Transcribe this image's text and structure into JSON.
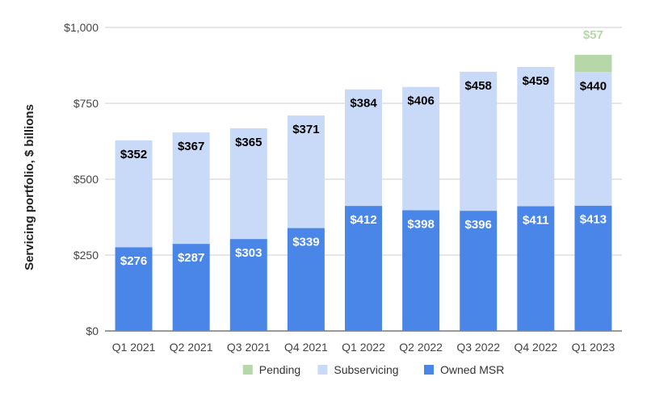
{
  "chart_data": {
    "type": "bar",
    "stacked": true,
    "categories": [
      "Q1 2021",
      "Q2 2021",
      "Q3 2021",
      "Q4 2021",
      "Q1 2022",
      "Q2 2022",
      "Q3 2022",
      "Q4 2022",
      "Q1 2023"
    ],
    "series": [
      {
        "name": "Owned MSR",
        "color": "#4a86e8",
        "label_color": "#ffffff",
        "values": [
          276,
          287,
          303,
          339,
          412,
          398,
          396,
          411,
          413
        ],
        "labels": [
          "$276",
          "$287",
          "$303",
          "$339",
          "$412",
          "$398",
          "$396",
          "$411",
          "$413"
        ]
      },
      {
        "name": "Subservicing",
        "color": "#c9daf8",
        "label_color": "#000000",
        "values": [
          352,
          367,
          365,
          371,
          384,
          406,
          458,
          459,
          440
        ],
        "labels": [
          "$352",
          "$367",
          "$365",
          "$371",
          "$384",
          "$406",
          "$458",
          "$459",
          "$440"
        ]
      },
      {
        "name": "Pending",
        "color": "#b6d7a8",
        "label_color": "#b6d7a8",
        "values": [
          null,
          null,
          null,
          null,
          null,
          null,
          null,
          null,
          57
        ],
        "labels": [
          "",
          "",
          "",
          "",
          "",
          "",
          "",
          "",
          "$57"
        ]
      }
    ],
    "legend_order": [
      "Pending",
      "Subservicing",
      "Owned MSR"
    ],
    "ylabel": "Servicing portfolio, $ billions",
    "xlabel": "",
    "title": "",
    "ylim": [
      0,
      1000
    ],
    "yticks": [
      0,
      250,
      500,
      750,
      1000
    ],
    "ytick_labels": [
      "$0",
      "$250",
      "$500",
      "$750",
      "$1,000"
    ],
    "grid": true,
    "legend_position": "bottom"
  }
}
